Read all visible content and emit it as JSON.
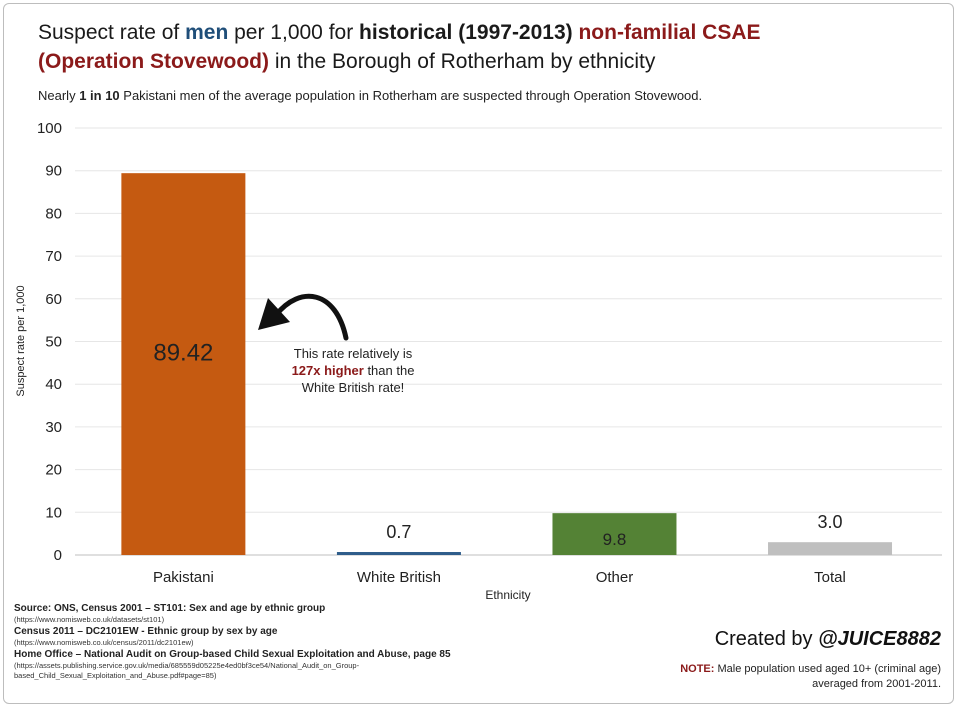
{
  "title": {
    "p1": "Suspect rate of ",
    "men": "men",
    "p2": " per 1,000 for ",
    "historical": "historical (1997-2013)",
    "p3": " ",
    "csae": "non-familial CSAE",
    "stovewood": "(Operation Stovewood)",
    "p4": " in the Borough of Rotherham by ethnicity"
  },
  "subtitle": {
    "p1": "Nearly ",
    "bold": "1 in 10",
    "p2": " Pakistani men of the average population in Rotherham are suspected through Operation Stovewood."
  },
  "chart_data": {
    "type": "bar",
    "categories": [
      "Pakistani",
      "White British",
      "Other",
      "Total"
    ],
    "values": [
      89.42,
      0.7,
      9.8,
      3.0
    ],
    "value_labels": [
      "89.42",
      "0.7",
      "9.8",
      "3.0"
    ],
    "colors": [
      "#c55a11",
      "#2e5c8a",
      "#548235",
      "#bfbfbf"
    ],
    "xlabel": "Ethnicity",
    "ylabel": "Suspect rate per 1,000",
    "ylim": [
      0,
      100
    ],
    "yticks": [
      0,
      10,
      20,
      30,
      40,
      50,
      60,
      70,
      80,
      90,
      100
    ],
    "grid": true,
    "annotation": {
      "line1": "This rate relatively is",
      "highlight": "127x higher",
      "line2": " than the",
      "line3": "White British rate!"
    }
  },
  "sources": {
    "s1": "Source: ONS, Census 2001 – ST101: Sex and age by ethnic group",
    "u1": "(https://www.nomisweb.co.uk/datasets/st101)",
    "s2": "Census 2011 – DC2101EW - Ethnic group by sex by age",
    "u2": "(https://www.nomisweb.co.uk/census/2011/dc2101ew)",
    "s3": "Home Office – National Audit on Group-based Child Sexual Exploitation and Abuse, page 85",
    "u3a": "(https://assets.publishing.service.gov.uk/media/685559d05225e4ed0bf3ce54/National_Audit_on_Group-",
    "u3b": "based_Child_Sexual_Exploitation_and_Abuse.pdf#page=85)"
  },
  "created": {
    "prefix": "Created by ",
    "handle": "@JUICE8882"
  },
  "note": {
    "label": "NOTE:",
    "text1": " Male population used aged 10+ (criminal age)",
    "text2": "averaged from 2001-2011."
  }
}
